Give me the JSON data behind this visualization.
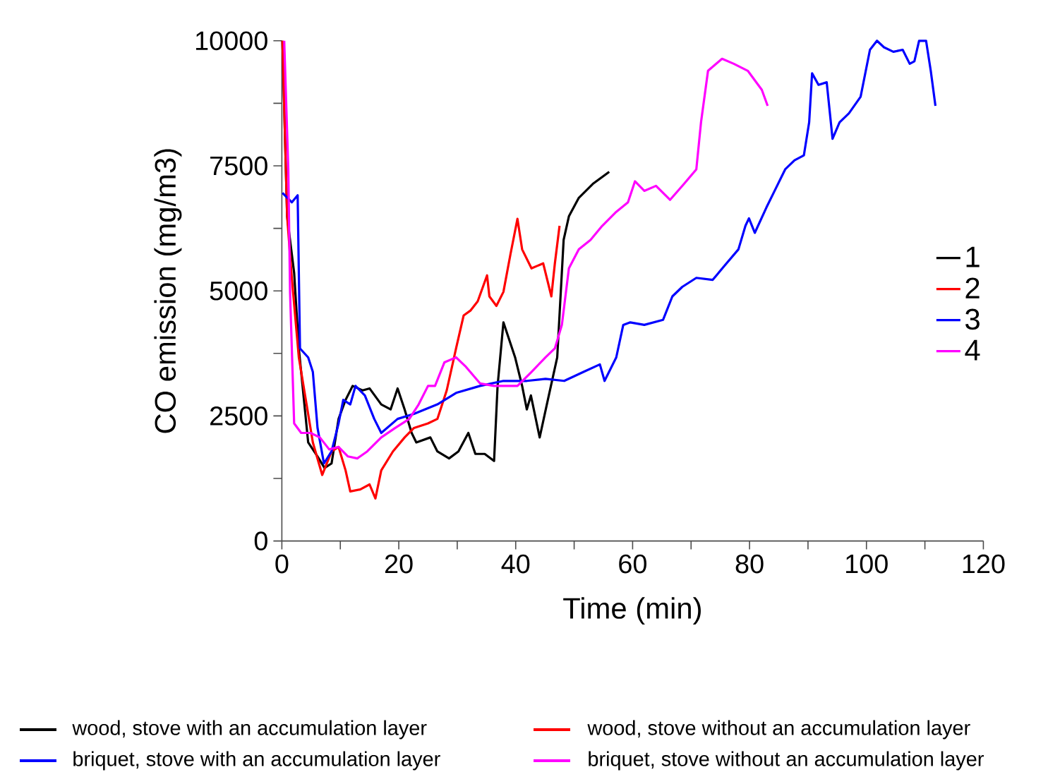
{
  "chart_data": {
    "type": "line",
    "xlabel": "Time (min)",
    "ylabel": "CO emission (mg/m3)",
    "xlim": [
      0,
      120
    ],
    "ylim": [
      0,
      10000
    ],
    "xticks": [
      0,
      {
        "value": 10,
        "label": null
      },
      20,
      {
        "value": 30,
        "label": null
      },
      40,
      {
        "value": 50,
        "label": null
      },
      60,
      {
        "value": 70,
        "label": null
      },
      80,
      {
        "value": 90,
        "label": null
      },
      100,
      {
        "value": 110,
        "label": null
      },
      120
    ],
    "yticks": [
      0,
      {
        "value": 1250,
        "label": null
      },
      2500,
      {
        "value": 3750,
        "label": null
      },
      5000,
      {
        "value": 6250,
        "label": null
      },
      7500,
      {
        "value": 8750,
        "label": null
      },
      10000
    ],
    "legend": "right",
    "series": [
      {
        "name": "1",
        "color": "#000000",
        "x": [
          0.1,
          0.9,
          2.1,
          2.9,
          4.5,
          6.1,
          7.3,
          8.5,
          9.7,
          10.9,
          12.1,
          13.8,
          15.0,
          17.0,
          18.6,
          19.8,
          21.0,
          22.2,
          23.0,
          25.4,
          26.6,
          28.6,
          30.2,
          31.9,
          33.1,
          34.7,
          36.3,
          36.9,
          37.9,
          39.9,
          41.1,
          41.9,
          42.6,
          44.1,
          45.5,
          47.1,
          48.2,
          49.1,
          50.8,
          53.2,
          56.0
        ],
        "values": [
          10000,
          6490,
          5360,
          3850,
          1970,
          1690,
          1460,
          1550,
          2440,
          2820,
          3100,
          3010,
          3050,
          2730,
          2630,
          3050,
          2630,
          2160,
          1970,
          2070,
          1790,
          1650,
          1790,
          2160,
          1740,
          1740,
          1600,
          3100,
          4370,
          3670,
          3100,
          2630,
          2910,
          2070,
          2820,
          3670,
          6020,
          6490,
          6860,
          7140,
          7380
        ]
      },
      {
        "name": "2",
        "color": "#ff0000",
        "x": [
          0.1,
          0.9,
          1.7,
          2.9,
          4.1,
          5.3,
          6.9,
          8.5,
          9.7,
          10.9,
          11.7,
          13.4,
          15.0,
          16.0,
          17.0,
          19.0,
          21.0,
          22.6,
          25.0,
          26.6,
          28.2,
          29.8,
          31.1,
          32.3,
          33.5,
          35.1,
          35.5,
          36.7,
          37.9,
          39.1,
          40.3,
          41.1,
          42.7,
          44.7,
          46.1,
          46.7,
          47.5
        ],
        "values": [
          10000,
          6490,
          5260,
          3670,
          2820,
          1970,
          1320,
          1790,
          1880,
          1410,
          990,
          1030,
          1130,
          850,
          1410,
          1790,
          2070,
          2260,
          2350,
          2440,
          3010,
          3850,
          4510,
          4610,
          4790,
          5310,
          4890,
          4700,
          4980,
          5730,
          6440,
          5830,
          5450,
          5550,
          4890,
          5550,
          6300
        ]
      },
      {
        "name": "3",
        "color": "#0000ff",
        "x": [
          0.1,
          1.7,
          2.7,
          3.1,
          4.5,
          5.3,
          6.1,
          7.2,
          8.5,
          9.7,
          10.5,
          11.7,
          12.6,
          14.2,
          15.8,
          17.0,
          19.8,
          22.6,
          26.6,
          29.8,
          33.9,
          37.9,
          41.9,
          45.1,
          48.3,
          51.6,
          54.4,
          55.2,
          57.2,
          58.4,
          59.6,
          62.0,
          65.2,
          66.8,
          68.5,
          70.9,
          73.7,
          75.7,
          78.1,
          79.3,
          79.9,
          80.9,
          82.9,
          84.5,
          86.1,
          87.7,
          89.3,
          90.2,
          90.7,
          91.8,
          93.2,
          94.2,
          95.4,
          97.0,
          99.0,
          100.6,
          101.8,
          103.0,
          104.6,
          106.2,
          107.4,
          108.2,
          109.0,
          110.2,
          111.0,
          111.8
        ],
        "values": [
          6960,
          6770,
          6910,
          3850,
          3670,
          3380,
          2260,
          1550,
          1790,
          2350,
          2820,
          2730,
          3100,
          2910,
          2440,
          2160,
          2440,
          2540,
          2730,
          2960,
          3100,
          3200,
          3200,
          3240,
          3200,
          3380,
          3530,
          3200,
          3670,
          4320,
          4370,
          4320,
          4420,
          4890,
          5080,
          5260,
          5220,
          5500,
          5830,
          6300,
          6450,
          6160,
          6670,
          7050,
          7430,
          7610,
          7710,
          8370,
          9350,
          9120,
          9170,
          8040,
          8370,
          8550,
          8880,
          9820,
          10000,
          9870,
          9780,
          9820,
          9540,
          9590,
          10000,
          10000,
          9400,
          8700
        ]
      },
      {
        "name": "4",
        "color": "#ff00ff",
        "x": [
          0.4,
          1.1,
          1.4,
          2.1,
          3.3,
          4.9,
          6.5,
          8.1,
          9.7,
          11.3,
          12.9,
          14.6,
          17.0,
          19.4,
          21.8,
          23.4,
          25.0,
          26.2,
          27.8,
          29.8,
          31.5,
          33.9,
          36.3,
          40.3,
          42.7,
          45.1,
          46.7,
          47.9,
          49.1,
          50.8,
          52.8,
          54.8,
          57.2,
          59.2,
          60.4,
          62.0,
          64.0,
          66.4,
          68.8,
          70.9,
          71.7,
          72.9,
          75.3,
          77.3,
          79.7,
          82.1,
          83.1
        ],
        "values": [
          10000,
          7430,
          4980,
          2350,
          2160,
          2160,
          2070,
          1830,
          1880,
          1690,
          1650,
          1790,
          2070,
          2260,
          2440,
          2730,
          3100,
          3100,
          3570,
          3670,
          3480,
          3150,
          3100,
          3100,
          3380,
          3670,
          3850,
          4320,
          5450,
          5830,
          6020,
          6300,
          6580,
          6770,
          7190,
          7000,
          7100,
          6820,
          7140,
          7430,
          8370,
          9400,
          9640,
          9540,
          9400,
          9020,
          8700
        ]
      }
    ],
    "annotations": [
      "wood, stove with an accumulation layer",
      "wood, stove without an accumulation layer",
      "briquet, stove with an accumulation layer",
      "briquet, stove without an accumulation layer"
    ]
  }
}
